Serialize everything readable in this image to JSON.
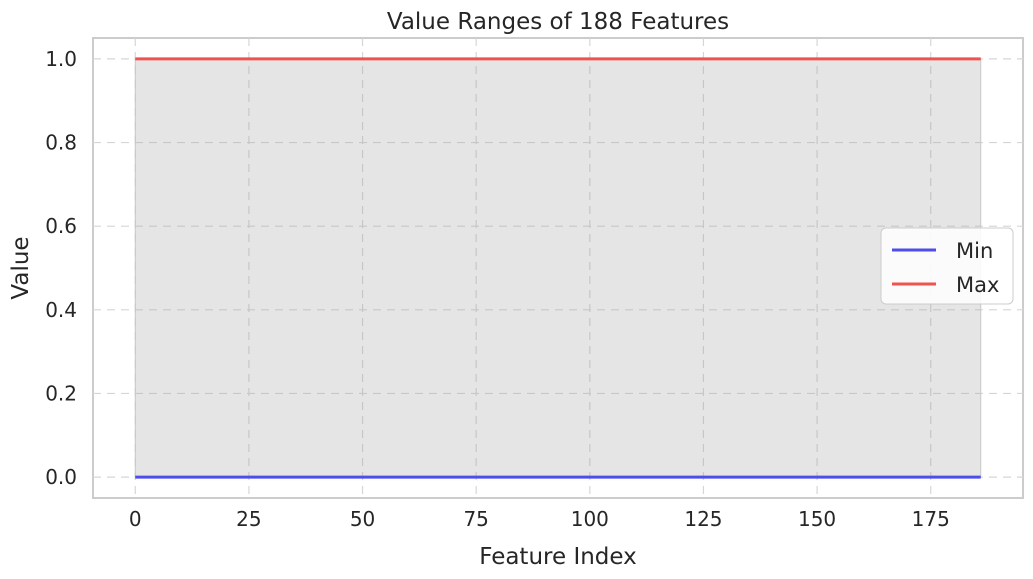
{
  "chart_data": {
    "type": "line",
    "title": "Value Ranges of 188 Features",
    "xlabel": "Feature Index",
    "ylabel": "Value",
    "xlim": [
      -9.3,
      195.3
    ],
    "ylim": [
      -0.05,
      1.05
    ],
    "xticks": [
      0,
      25,
      50,
      75,
      100,
      125,
      150,
      175
    ],
    "yticks": [
      0.0,
      0.2,
      0.4,
      0.6,
      0.8,
      1.0
    ],
    "ytick_labels": [
      "0.0",
      "0.2",
      "0.4",
      "0.6",
      "0.8",
      "1.0"
    ],
    "grid": true,
    "legend_position": "center-right",
    "fill_between": {
      "color": "#a0a0a0",
      "opacity": 0.28
    },
    "series": [
      {
        "name": "Min",
        "color": "#4d4dea",
        "x": [
          0,
          186
        ],
        "values": [
          0.0,
          0.0
        ]
      },
      {
        "name": "Max",
        "color": "#f0524f",
        "x": [
          0,
          186
        ],
        "values": [
          1.0,
          1.0
        ]
      }
    ]
  }
}
